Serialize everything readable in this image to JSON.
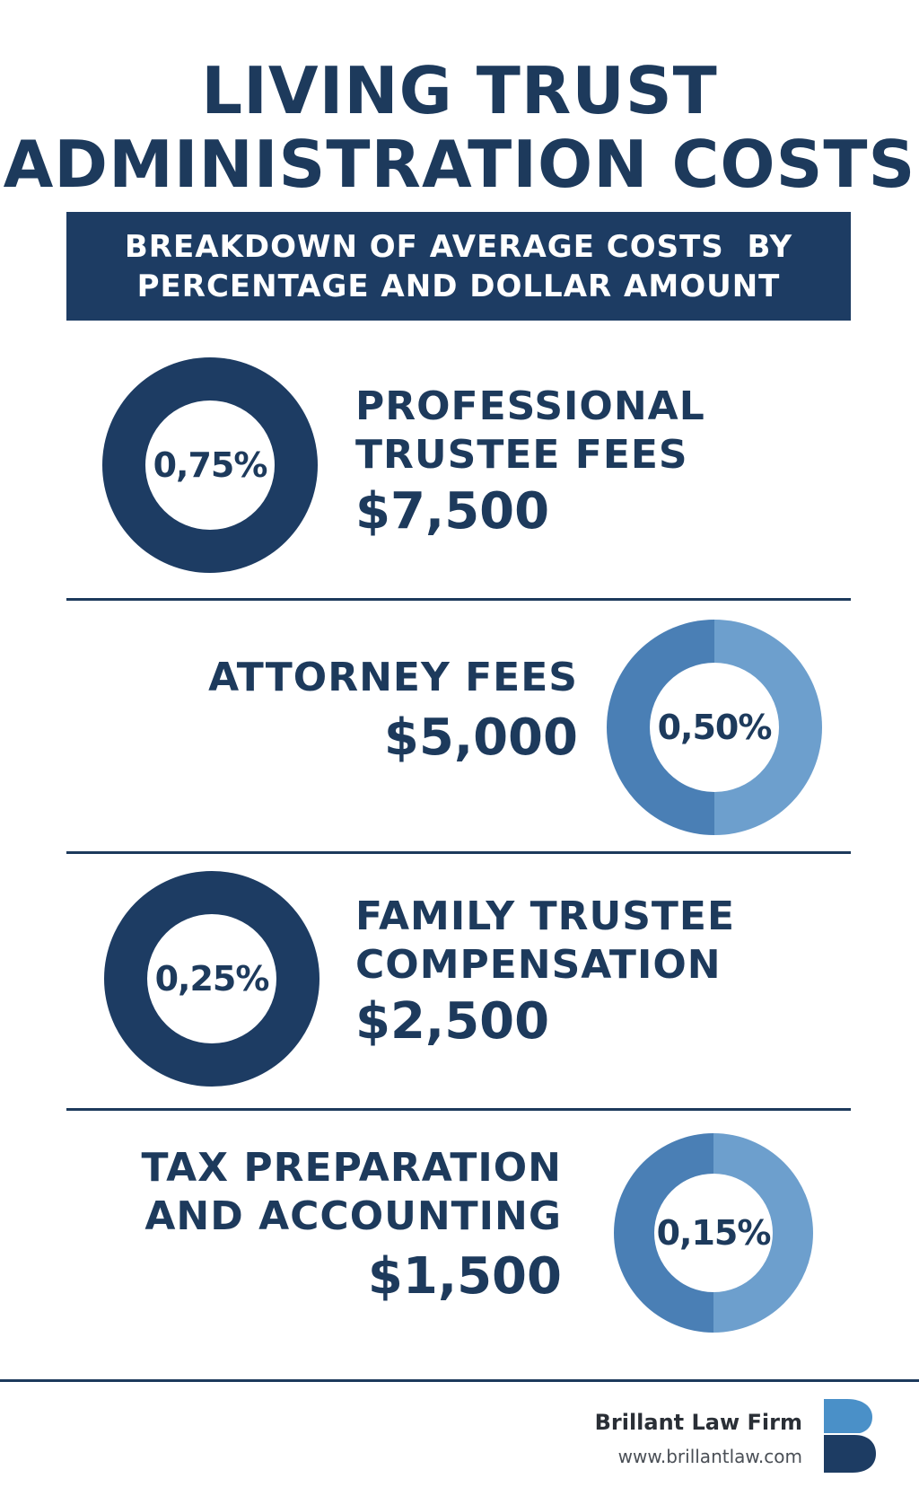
{
  "header": {
    "title_line1": "LIVING TRUST",
    "title_line2": "ADMINISTRATION COSTS",
    "subtitle_line1": "BREAKDOWN OF AVERAGE COSTS  BY",
    "subtitle_line2": "PERCENTAGE AND DOLLAR AMOUNT"
  },
  "items": [
    {
      "label_line1": "PROFESSIONAL",
      "label_line2": "TRUSTEE FEES",
      "percent": "0,75%",
      "amount": "$7,500",
      "style": "dark"
    },
    {
      "label_line1": "ATTORNEY FEES",
      "label_line2": "",
      "percent": "0,50%",
      "amount": "$5,000",
      "style": "light"
    },
    {
      "label_line1": "FAMILY TRUSTEE",
      "label_line2": "COMPENSATION",
      "percent": "0,25%",
      "amount": "$2,500",
      "style": "dark"
    },
    {
      "label_line1": "TAX PREPARATION",
      "label_line2": "AND ACCOUNTING",
      "percent": "0,15%",
      "amount": "$1,500",
      "style": "light"
    }
  ],
  "footer": {
    "firm_name": "Brillant Law Firm",
    "url": "www.brillantlaw.com",
    "logo_icon": "letter-b-logo-icon"
  },
  "colors": {
    "navy": "#1d3c63",
    "light_blue": "#6d9fcd",
    "mid_blue": "#4a7fb5"
  }
}
